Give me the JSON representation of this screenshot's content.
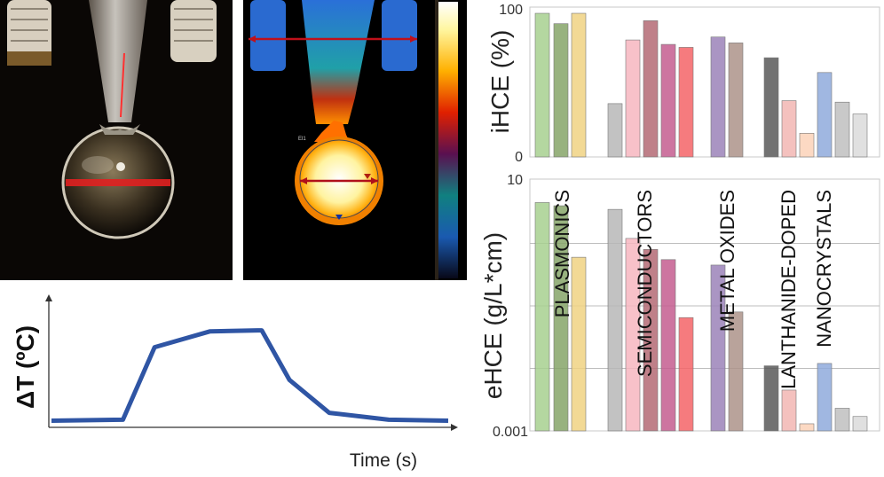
{
  "dt_plot": {
    "ylabel": "ΔT (ºC)",
    "xlabel": "Time (s)",
    "line_color": "#2f55a4",
    "profile": {
      "type": "line",
      "x": [
        0,
        0.18,
        0.26,
        0.4,
        0.52,
        0.53,
        0.6,
        0.7,
        0.85,
        1.0
      ],
      "y": [
        0.04,
        0.05,
        0.78,
        0.94,
        0.95,
        0.95,
        0.45,
        0.12,
        0.05,
        0.04
      ]
    }
  },
  "thermal": {
    "roi_label": "El1"
  },
  "chart_data": [
    {
      "type": "bar",
      "name": "iHCE",
      "ylabel": "iHCE (%)",
      "ylim": [
        0,
        100
      ],
      "yticks": [
        "100",
        "0"
      ],
      "values": [
        97,
        90,
        97,
        36,
        79,
        92,
        76,
        74,
        81,
        77,
        67,
        38,
        16,
        57,
        37,
        29
      ],
      "colors": [
        "#a7d08f",
        "#86a469",
        "#f0d283",
        "#b7b7b7",
        "#f7b6bf",
        "#b46a74",
        "#c45d8f",
        "#f46467",
        "#9b83b9",
        "#ad9389",
        "#595959",
        "#f2b6b3",
        "#fbd2b8",
        "#8faadc",
        "#bfbfbf",
        "#dadada"
      ]
    },
    {
      "type": "bar",
      "name": "eHCE",
      "scale": "log",
      "ylabel": "eHCE (g/L*cm)",
      "ylim": [
        0.001,
        10
      ],
      "yticks": [
        "10",
        "0.001"
      ],
      "values": [
        4.5,
        4.0,
        0.6,
        3.5,
        1.2,
        0.8,
        0.55,
        0.065,
        0.45,
        0.08,
        0.011,
        0.0045,
        0.0013,
        0.012,
        0.0023,
        0.0017
      ],
      "colors": [
        "#a7d08f",
        "#86a469",
        "#f0d283",
        "#b7b7b7",
        "#f7b6bf",
        "#b46a74",
        "#c45d8f",
        "#f46467",
        "#9b83b9",
        "#ad9389",
        "#595959",
        "#f2b6b3",
        "#fbd2b8",
        "#8faadc",
        "#bfbfbf",
        "#dadada"
      ],
      "group_labels": [
        "PLASMONICS",
        "SEMICONDUCTORS",
        "METAL OXIDES",
        "LANTHANIDE-DOPED",
        "NANOCRYSTALS"
      ]
    }
  ]
}
